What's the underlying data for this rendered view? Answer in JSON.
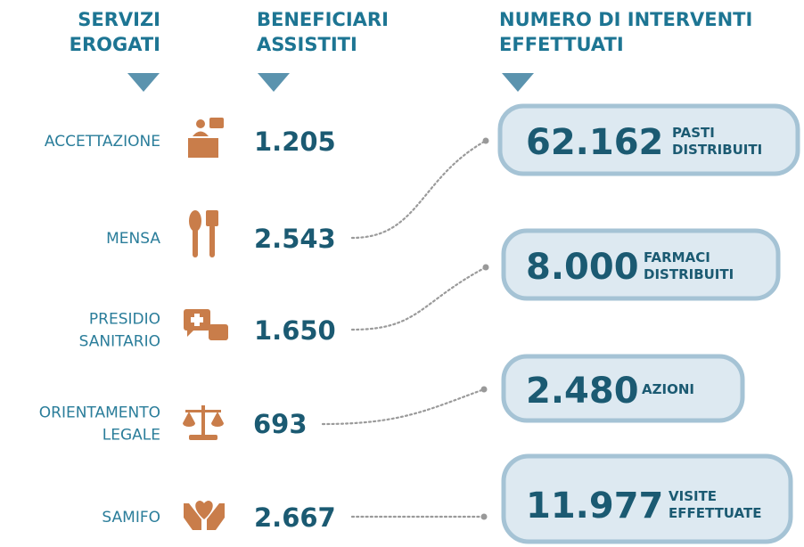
{
  "headers": [
    [
      "SERVIZI",
      "EROGATI"
    ],
    [
      "BENEFICIARI",
      "ASSISTITI"
    ],
    [
      "NUMERO DI INTERVENTI",
      "EFFETTUATI"
    ]
  ],
  "services": [
    {
      "name": [
        "ACCETTAZIONE"
      ],
      "beneficiaries": "1.205"
    },
    {
      "name": [
        "MENSA"
      ],
      "beneficiaries": "2.543"
    },
    {
      "name": [
        "PRESIDIO",
        "SANITARIO"
      ],
      "beneficiaries": "1.650"
    },
    {
      "name": [
        "ORIENTAMENTO",
        "LEGALE"
      ],
      "beneficiaries": "693"
    },
    {
      "name": [
        "SAMIFO"
      ],
      "beneficiaries": "2.667"
    }
  ],
  "interventions": [
    {
      "value": "62.162",
      "label": [
        "PASTI",
        "DISTRIBUITI"
      ]
    },
    {
      "value": "8.000",
      "label": [
        "FARMACI",
        "DISTRIBUITI"
      ]
    },
    {
      "value": "2.480",
      "label": [
        "AZIONI"
      ]
    },
    {
      "value": "11.977",
      "label": [
        "VISITE",
        "EFFETTUATE"
      ]
    }
  ]
}
